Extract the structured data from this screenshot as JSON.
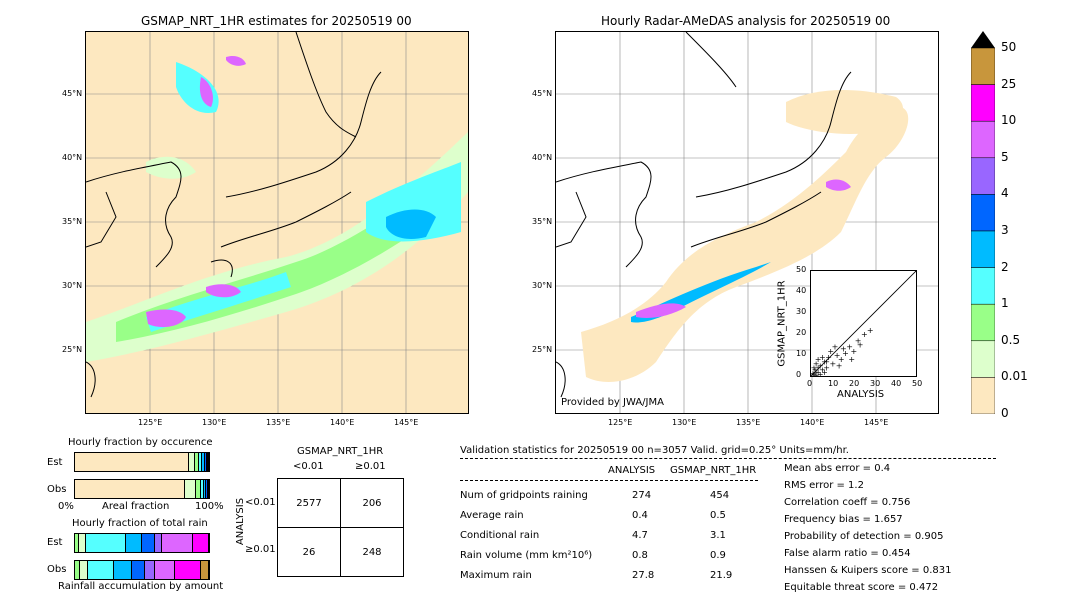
{
  "left_map": {
    "title": "GSMAP_NRT_1HR estimates for 20250519 00",
    "lat_labels": [
      "45°N",
      "40°N",
      "35°N",
      "30°N",
      "25°N"
    ],
    "lon_labels": [
      "125°E",
      "130°E",
      "135°E",
      "140°E",
      "145°E"
    ]
  },
  "right_map": {
    "title": "Hourly Radar-AMeDAS analysis for 20250519 00",
    "lat_labels": [
      "45°N",
      "40°N",
      "35°N",
      "30°N",
      "25°N"
    ],
    "lon_labels": [
      "125°E",
      "130°E",
      "135°E",
      "140°E",
      "145°E"
    ],
    "credit": "Provided by JWA/JMA"
  },
  "colorbar": {
    "labels": [
      "50",
      "25",
      "10",
      "5",
      "4",
      "3",
      "2",
      "1",
      "0.5",
      "0.01",
      "0"
    ],
    "colors": [
      "#c8963c",
      "#ff00ff",
      "#dd66ff",
      "#9966ff",
      "#0066ff",
      "#00bbff",
      "#55ffff",
      "#99ff88",
      "#ddffcc",
      "#fde8c0"
    ]
  },
  "chart_data": [
    {
      "type": "scatter",
      "xlabel": "ANALYSIS",
      "ylabel": "GSMAP_NRT_1HR",
      "xlim": [
        0,
        50
      ],
      "ylim": [
        0,
        50
      ],
      "x_ticks": [
        "0",
        "10",
        "20",
        "30",
        "40",
        "50"
      ],
      "y_ticks": [
        "0",
        "10",
        "20",
        "30",
        "40",
        "50"
      ],
      "points": [
        [
          1,
          1
        ],
        [
          2,
          0.5
        ],
        [
          1.5,
          3
        ],
        [
          3,
          2
        ],
        [
          4,
          5
        ],
        [
          5,
          3
        ],
        [
          2,
          6
        ],
        [
          6,
          7
        ],
        [
          3,
          8
        ],
        [
          7,
          4
        ],
        [
          8,
          9
        ],
        [
          10,
          6
        ],
        [
          9,
          12
        ],
        [
          12,
          10
        ],
        [
          14,
          8
        ],
        [
          15,
          13
        ],
        [
          16,
          11
        ],
        [
          18,
          14
        ],
        [
          20,
          12
        ],
        [
          22,
          17
        ],
        [
          25,
          20
        ],
        [
          27.8,
          21.9
        ],
        [
          4,
          1
        ],
        [
          6,
          2
        ],
        [
          1,
          4
        ],
        [
          5,
          9
        ],
        [
          11,
          14
        ],
        [
          13,
          5
        ],
        [
          2,
          2
        ],
        [
          0.5,
          1.5
        ],
        [
          3,
          4
        ],
        [
          7,
          7
        ],
        [
          19,
          8
        ],
        [
          23,
          15
        ]
      ]
    },
    {
      "type": "bar",
      "title": "Hourly fraction by occurence",
      "rows": [
        "Est",
        "Obs"
      ],
      "xlabel": "Areal fraction",
      "x_ticks": [
        "0%",
        "100%"
      ],
      "series": [
        {
          "row": "Est",
          "values": [
            0.85,
            0.05,
            0.03,
            0.02,
            0.02,
            0.015,
            0.01,
            0.005
          ],
          "colors": [
            "#fde8c0",
            "#ddffcc",
            "#99ff88",
            "#55ffff",
            "#00bbff",
            "#0066ff",
            "#9966ff",
            "#dd66ff"
          ]
        },
        {
          "row": "Obs",
          "values": [
            0.82,
            0.08,
            0.04,
            0.02,
            0.02,
            0.01,
            0.01
          ],
          "colors": [
            "#fde8c0",
            "#ddffcc",
            "#99ff88",
            "#55ffff",
            "#00bbff",
            "#0066ff",
            "#9966ff"
          ]
        }
      ]
    },
    {
      "type": "bar",
      "title": "Hourly fraction of total rain",
      "rows": [
        "Est",
        "Obs"
      ],
      "xlabel": "Rainfall accumulation by amount",
      "series": [
        {
          "row": "Est",
          "values": [
            0.03,
            0.05,
            0.3,
            0.12,
            0.1,
            0.05,
            0.23,
            0.12
          ],
          "colors": [
            "#99ff88",
            "#ddffcc",
            "#55ffff",
            "#00bbff",
            "#0066ff",
            "#9966ff",
            "#dd66ff",
            "#ff00ff"
          ]
        },
        {
          "row": "Obs",
          "values": [
            0.04,
            0.06,
            0.2,
            0.14,
            0.1,
            0.08,
            0.16,
            0.2,
            0.06
          ],
          "colors": [
            "#99ff88",
            "#ddffcc",
            "#55ffff",
            "#00bbff",
            "#0066ff",
            "#9966ff",
            "#dd66ff",
            "#ff00ff",
            "#c8963c"
          ]
        }
      ]
    }
  ],
  "contingency": {
    "title": "GSMAP_NRT_1HR",
    "col_labels": [
      "<0.01",
      "≥0.01"
    ],
    "row_axis": "ANALYSIS",
    "row_labels": [
      "<0.01",
      "≥0.01"
    ],
    "cells": [
      [
        "2577",
        "206"
      ],
      [
        "26",
        "248"
      ]
    ]
  },
  "validation": {
    "header": "Validation statistics for 20250519 00  n=3057 Valid. grid=0.25° Units=mm/hr.",
    "col_analysis": "ANALYSIS",
    "col_gsmap": "GSMAP_NRT_1HR",
    "rows": [
      {
        "label": "Num of gridpoints raining",
        "analysis": "274",
        "gsmap": "454"
      },
      {
        "label": "Average rain",
        "analysis": "0.4",
        "gsmap": "0.5"
      },
      {
        "label": "Conditional rain",
        "analysis": "4.7",
        "gsmap": "3.1"
      },
      {
        "label": "Rain volume (mm km²10⁶)",
        "analysis": "0.8",
        "gsmap": "0.9"
      },
      {
        "label": "Maximum rain",
        "analysis": "27.8",
        "gsmap": "21.9"
      }
    ],
    "scores": [
      "Mean abs error =    0.4",
      "RMS error =    1.2",
      "Correlation coeff =  0.756",
      "Frequency bias =  1.657",
      "Probability of detection =  0.905",
      "False alarm ratio =  0.454",
      "Hanssen & Kuipers score =  0.831",
      "Equitable threat score =  0.472"
    ]
  }
}
